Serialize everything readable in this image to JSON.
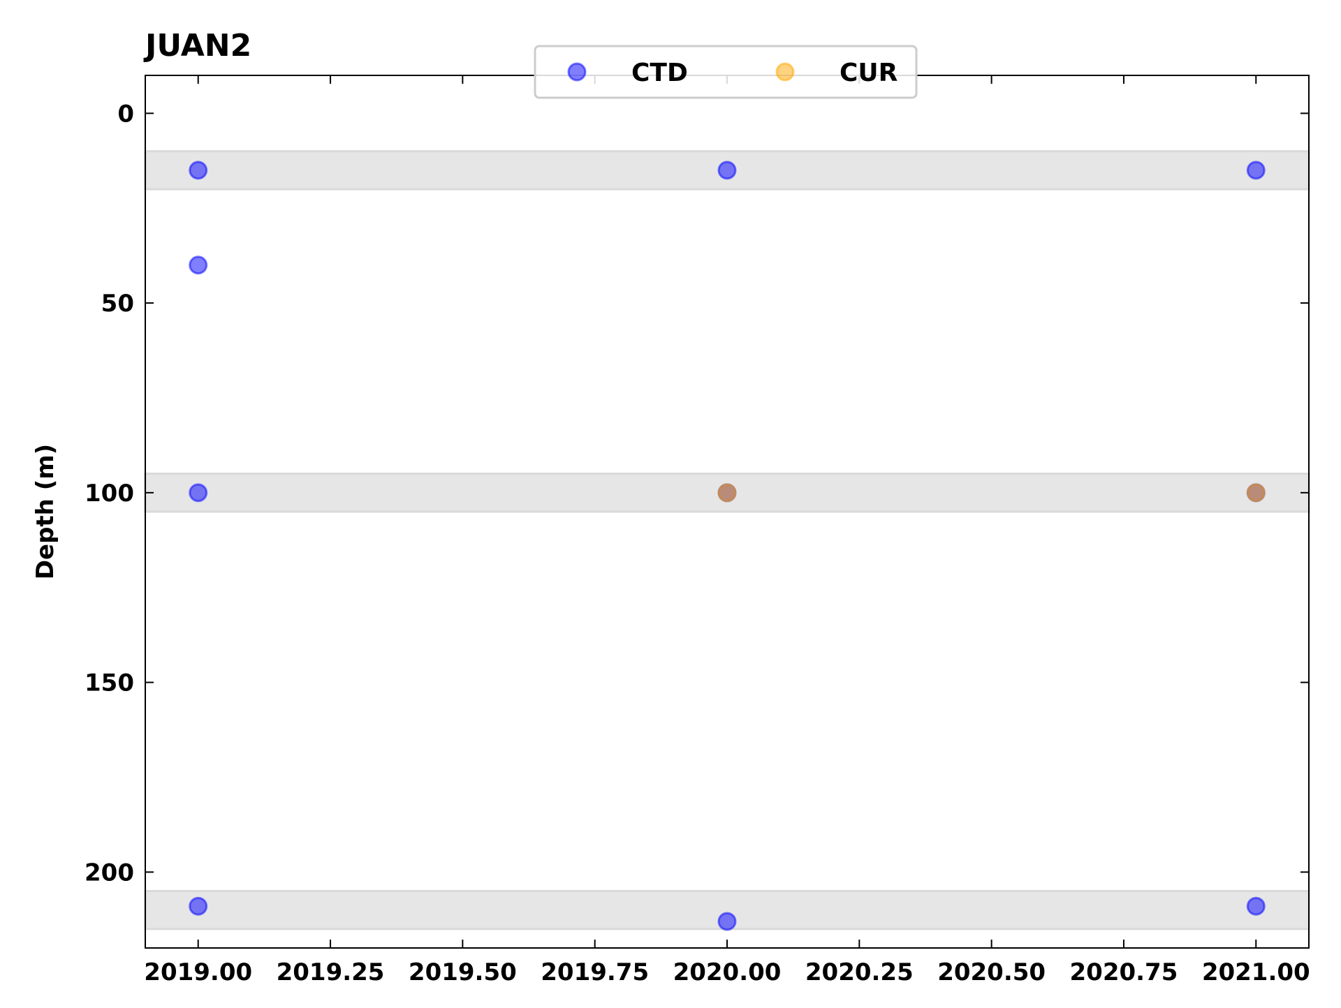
{
  "chart_data": {
    "type": "scatter",
    "title": "JUAN2",
    "xlabel": "",
    "ylabel": "Depth (m)",
    "xlim": [
      2018.9,
      2021.1
    ],
    "ylim": [
      220,
      -10
    ],
    "y_inverted": true,
    "x_ticks": [
      2019.0,
      2019.25,
      2019.5,
      2019.75,
      2020.0,
      2020.25,
      2020.5,
      2020.75,
      2021.0
    ],
    "x_tick_labels": [
      "2019.00",
      "2019.25",
      "2019.50",
      "2019.75",
      "2020.00",
      "2020.25",
      "2020.50",
      "2020.75",
      "2021.00"
    ],
    "y_ticks": [
      0,
      50,
      100,
      150,
      200
    ],
    "y_tick_labels": [
      "0",
      "50",
      "100",
      "150",
      "200"
    ],
    "depth_bands": [
      {
        "from": 10,
        "to": 20
      },
      {
        "from": 95,
        "to": 105
      },
      {
        "from": 205,
        "to": 215
      }
    ],
    "legend": {
      "placement": "top-center",
      "ncol": 2
    },
    "series": [
      {
        "name": "CTD",
        "color": "#0000ff",
        "points": [
          {
            "x": 2019.0,
            "y": 15
          },
          {
            "x": 2019.0,
            "y": 40
          },
          {
            "x": 2019.0,
            "y": 100
          },
          {
            "x": 2019.0,
            "y": 209
          },
          {
            "x": 2020.0,
            "y": 15
          },
          {
            "x": 2020.0,
            "y": 100
          },
          {
            "x": 2020.0,
            "y": 213
          },
          {
            "x": 2021.0,
            "y": 15
          },
          {
            "x": 2021.0,
            "y": 100
          },
          {
            "x": 2021.0,
            "y": 209
          }
        ]
      },
      {
        "name": "CUR",
        "color": "#ffa500",
        "points": [
          {
            "x": 2020.0,
            "y": 100
          },
          {
            "x": 2021.0,
            "y": 100
          }
        ]
      }
    ],
    "colors": {
      "band": "#e6e6e6",
      "band_edge": "#d9d9d9",
      "axis": "#000000",
      "legend_frame": "#cccccc"
    }
  }
}
